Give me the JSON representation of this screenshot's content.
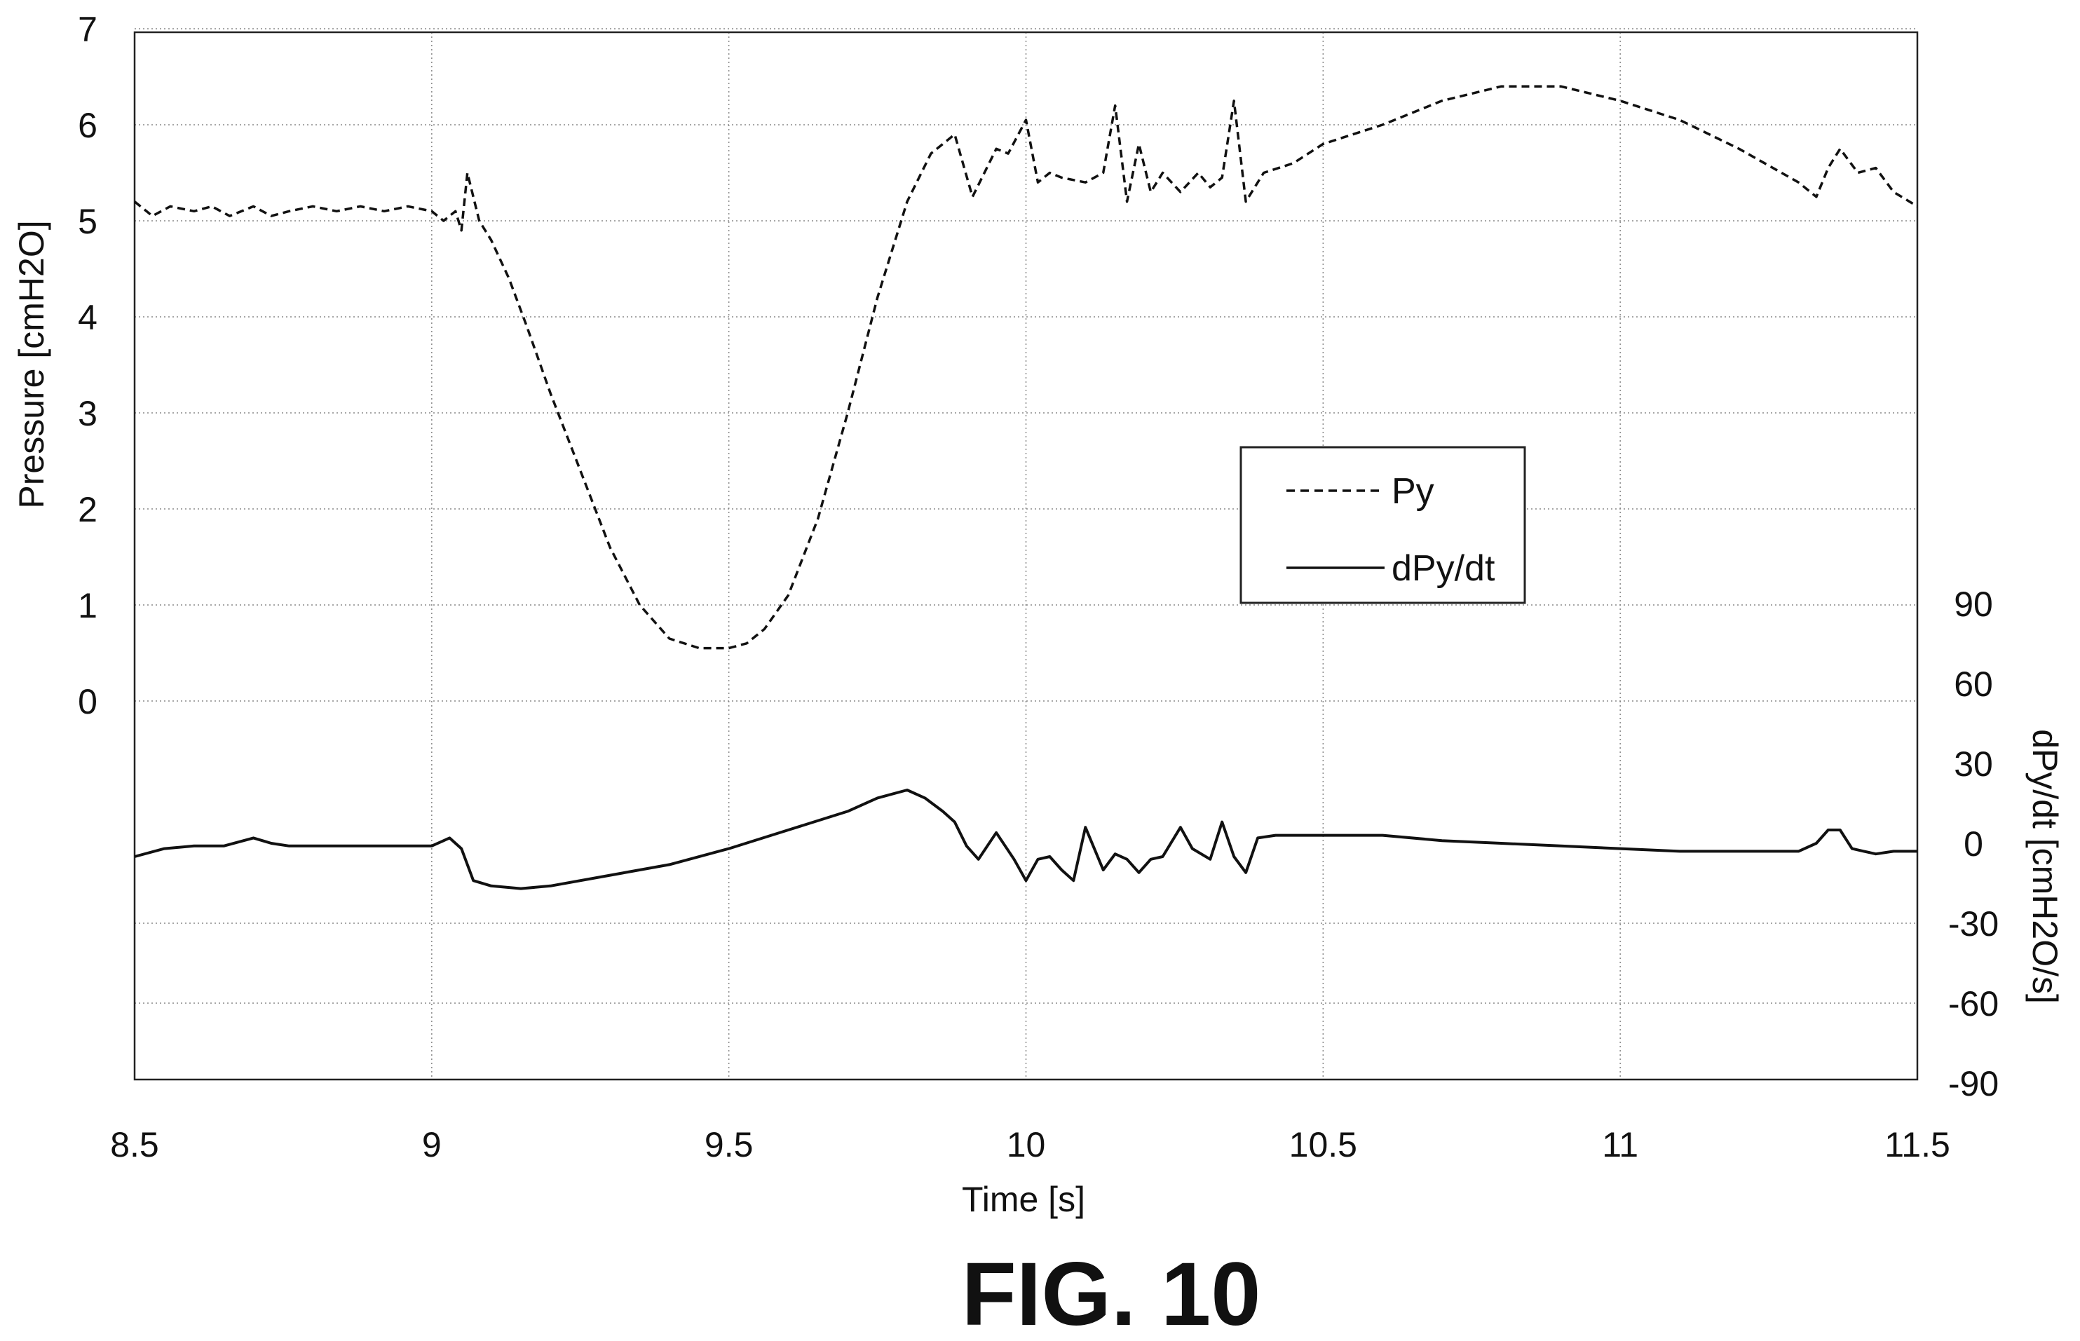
{
  "chart_data": {
    "type": "line",
    "xlabel": "Time [s]",
    "ylabel_left": "Pressure [cmH2O]",
    "ylabel_right": "dPy/dt [cmH2O/s]",
    "xlim": [
      8.5,
      11.5
    ],
    "ylim_left": [
      -4,
      7
    ],
    "ylim_right": [
      -90,
      90
    ],
    "x_ticks": [
      "8.5",
      "9",
      "9.5",
      "10",
      "10.5",
      "11",
      "11.5"
    ],
    "y_left_ticks": [
      "0",
      "1",
      "2",
      "3",
      "4",
      "5",
      "6",
      "7"
    ],
    "y_right_ticks": [
      "90",
      "60",
      "30",
      "0",
      "-30",
      "-60",
      "-90"
    ],
    "grid": true,
    "legend_placement": "center-right",
    "series": [
      {
        "name": "Py",
        "axis": "left",
        "style": "dashed",
        "color": "#111111",
        "x": [
          8.5,
          8.53,
          8.56,
          8.6,
          8.63,
          8.66,
          8.7,
          8.73,
          8.76,
          8.8,
          8.84,
          8.88,
          8.92,
          8.96,
          9.0,
          9.02,
          9.04,
          9.05,
          9.06,
          9.08,
          9.1,
          9.13,
          9.16,
          9.2,
          9.25,
          9.3,
          9.35,
          9.4,
          9.45,
          9.5,
          9.53,
          9.56,
          9.6,
          9.65,
          9.7,
          9.75,
          9.8,
          9.84,
          9.88,
          9.91,
          9.93,
          9.95,
          9.97,
          10.0,
          10.02,
          10.04,
          10.06,
          10.1,
          10.13,
          10.15,
          10.17,
          10.19,
          10.21,
          10.23,
          10.26,
          10.29,
          10.31,
          10.33,
          10.35,
          10.37,
          10.4,
          10.45,
          10.5,
          10.6,
          10.7,
          10.8,
          10.9,
          11.0,
          11.1,
          11.2,
          11.3,
          11.33,
          11.35,
          11.37,
          11.4,
          11.43,
          11.46,
          11.5
        ],
        "y": [
          5.2,
          5.05,
          5.15,
          5.1,
          5.15,
          5.05,
          5.15,
          5.05,
          5.1,
          5.15,
          5.1,
          5.15,
          5.1,
          5.15,
          5.1,
          5.0,
          5.1,
          4.9,
          5.5,
          5.0,
          4.8,
          4.4,
          3.9,
          3.2,
          2.4,
          1.6,
          1.0,
          0.65,
          0.55,
          0.55,
          0.6,
          0.75,
          1.1,
          1.9,
          3.0,
          4.2,
          5.2,
          5.7,
          5.9,
          5.25,
          5.5,
          5.75,
          5.7,
          6.05,
          5.4,
          5.5,
          5.45,
          5.4,
          5.5,
          6.2,
          5.2,
          5.8,
          5.3,
          5.5,
          5.3,
          5.5,
          5.35,
          5.45,
          6.25,
          5.2,
          5.5,
          5.6,
          5.8,
          6.0,
          6.25,
          6.4,
          6.4,
          6.25,
          6.05,
          5.75,
          5.4,
          5.25,
          5.55,
          5.75,
          5.5,
          5.55,
          5.3,
          5.15
        ]
      },
      {
        "name": "dPy/dt",
        "axis": "right",
        "style": "solid",
        "color": "#111111",
        "x": [
          8.5,
          8.55,
          8.6,
          8.65,
          8.7,
          8.73,
          8.76,
          8.8,
          8.85,
          8.9,
          8.95,
          9.0,
          9.03,
          9.05,
          9.07,
          9.1,
          9.15,
          9.2,
          9.3,
          9.4,
          9.5,
          9.6,
          9.7,
          9.75,
          9.8,
          9.83,
          9.86,
          9.88,
          9.9,
          9.92,
          9.95,
          9.98,
          10.0,
          10.02,
          10.04,
          10.06,
          10.08,
          10.1,
          10.13,
          10.15,
          10.17,
          10.19,
          10.21,
          10.23,
          10.26,
          10.28,
          10.31,
          10.33,
          10.35,
          10.37,
          10.39,
          10.42,
          10.5,
          10.6,
          10.7,
          10.8,
          10.9,
          11.0,
          11.1,
          11.2,
          11.3,
          11.33,
          11.35,
          11.37,
          11.39,
          11.41,
          11.43,
          11.46,
          11.5
        ],
        "y": [
          -5,
          -2,
          -1,
          -1,
          2,
          0,
          -1,
          -1,
          -1,
          -1,
          -1,
          -1,
          2,
          -2,
          -14,
          -16,
          -17,
          -16,
          -12,
          -8,
          -2,
          5,
          12,
          17,
          20,
          17,
          12,
          8,
          -1,
          -6,
          4,
          -6,
          -14,
          -6,
          -5,
          -10,
          -14,
          6,
          -10,
          -4,
          -6,
          -11,
          -6,
          -5,
          6,
          -2,
          -6,
          8,
          -5,
          -11,
          2,
          3,
          3,
          3,
          1,
          0,
          -1,
          -2,
          -3,
          -3,
          -3,
          0,
          5,
          5,
          -2,
          -3,
          -4,
          -3,
          -3
        ]
      }
    ],
    "legend": [
      {
        "label": "Py",
        "style": "dashed"
      },
      {
        "label": "dPy/dt",
        "style": "solid"
      }
    ]
  },
  "figure_label": "FIG. 10"
}
